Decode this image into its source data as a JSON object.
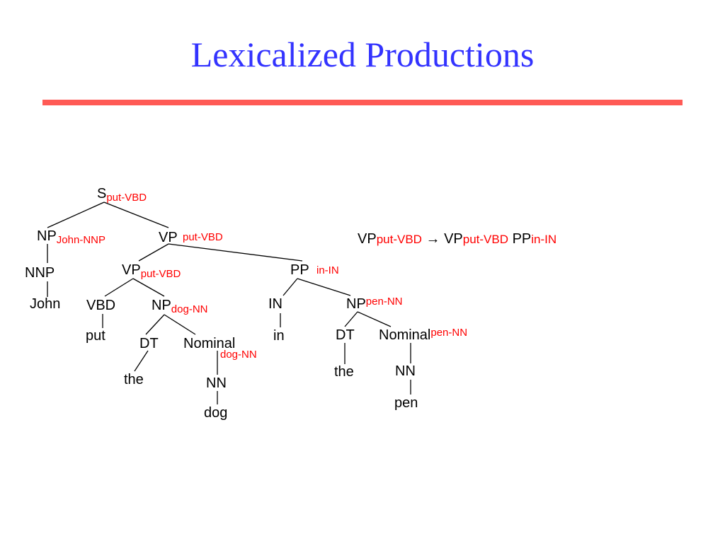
{
  "slide": {
    "title": "Lexicalized Productions",
    "rule_color": "#ff5a55",
    "title_color": "#3333ff",
    "head_color": "#ff0000"
  },
  "tree": {
    "s": {
      "cat": "S",
      "head": "put-VBD"
    },
    "np_subj": {
      "cat": "NP",
      "head": "John-NNP"
    },
    "nnp": {
      "cat": "NNP"
    },
    "john": {
      "word": "John"
    },
    "vp_top": {
      "cat": "VP",
      "head": "put-VBD"
    },
    "vp_inner": {
      "cat": "VP",
      "head": "put-VBD"
    },
    "vbd": {
      "cat": "VBD"
    },
    "put": {
      "word": "put"
    },
    "np_obj": {
      "cat": "NP",
      "head": "dog-NN"
    },
    "dt1": {
      "cat": "DT"
    },
    "the1": {
      "word": "the"
    },
    "nominal1": {
      "cat": "Nominal",
      "head": "dog-NN"
    },
    "nn1": {
      "cat": "NN"
    },
    "dog": {
      "word": "dog"
    },
    "pp": {
      "cat": "PP",
      "head": "in-IN"
    },
    "in_tag": {
      "cat": "IN"
    },
    "in_word": {
      "word": "in"
    },
    "np_pp": {
      "cat": "NP",
      "head": "pen-NN"
    },
    "dt2": {
      "cat": "DT"
    },
    "the2": {
      "word": "the"
    },
    "nominal2": {
      "cat": "Nominal",
      "head": "pen-NN"
    },
    "nn2": {
      "cat": "NN"
    },
    "pen": {
      "word": "pen"
    }
  },
  "production": {
    "lhs_cat": "VP",
    "lhs_head": "put-VBD",
    "arrow": "→",
    "rhs1_cat": "VP",
    "rhs1_head": "put-VBD",
    "rhs2_cat": "PP",
    "rhs2_head": "in-IN"
  }
}
